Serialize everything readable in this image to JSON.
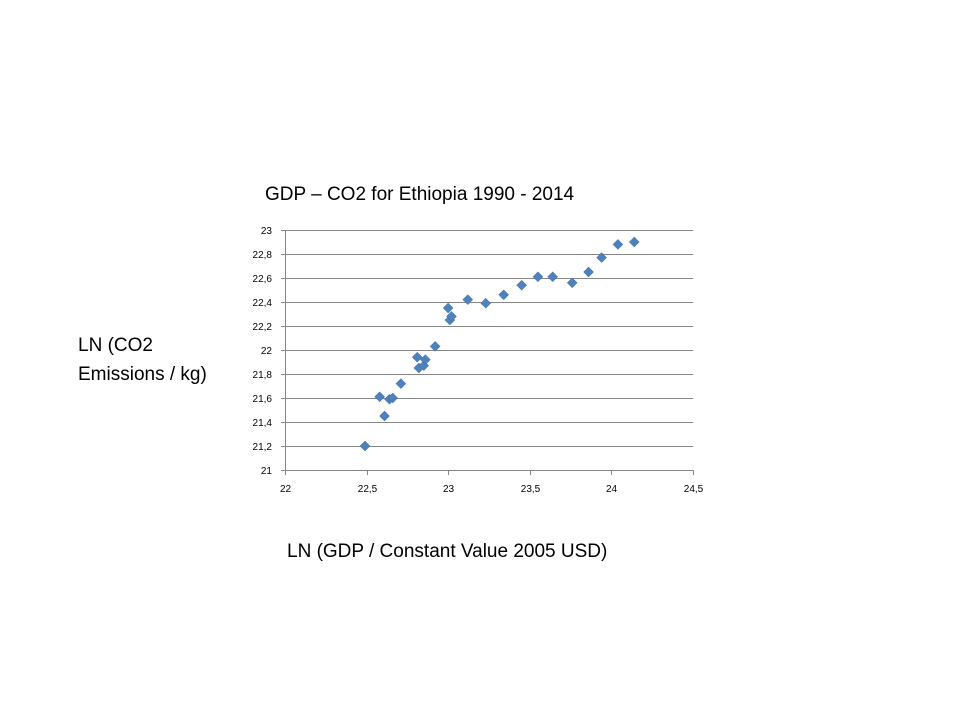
{
  "chart_data": {
    "type": "scatter",
    "title": "GDP – CO2 for Ethiopia 1990 - 2014",
    "xlabel": "LN (GDP / Constant Value 2005 USD)",
    "ylabel_lines": [
      "LN (CO2",
      "Emissions / kg)"
    ],
    "xlim": [
      22,
      24.5
    ],
    "ylim": [
      21,
      23
    ],
    "x_ticks": [
      22,
      22.5,
      23,
      23.5,
      24,
      24.5
    ],
    "x_tick_labels": [
      "22",
      "22,5",
      "23",
      "23,5",
      "24",
      "24,5"
    ],
    "y_ticks": [
      21,
      21.2,
      21.4,
      21.6,
      21.8,
      22,
      22.2,
      22.4,
      22.6,
      22.8,
      23
    ],
    "y_tick_labels": [
      "21",
      "21,2",
      "21,4",
      "21,6",
      "21,8",
      "22",
      "22,2",
      "22,4",
      "22,6",
      "22,8",
      "23"
    ],
    "grid": "horizontal",
    "legend": "none",
    "marker": "diamond",
    "color": "#4f81bd",
    "points": [
      {
        "x": 22.49,
        "y": 21.2
      },
      {
        "x": 22.58,
        "y": 21.61
      },
      {
        "x": 22.61,
        "y": 21.45
      },
      {
        "x": 22.64,
        "y": 21.59
      },
      {
        "x": 22.66,
        "y": 21.6
      },
      {
        "x": 22.71,
        "y": 21.72
      },
      {
        "x": 22.81,
        "y": 21.94
      },
      {
        "x": 22.82,
        "y": 21.85
      },
      {
        "x": 22.85,
        "y": 21.87
      },
      {
        "x": 22.86,
        "y": 21.92
      },
      {
        "x": 22.92,
        "y": 22.03
      },
      {
        "x": 23.0,
        "y": 22.35
      },
      {
        "x": 23.01,
        "y": 22.25
      },
      {
        "x": 23.02,
        "y": 22.28
      },
      {
        "x": 23.12,
        "y": 22.42
      },
      {
        "x": 23.23,
        "y": 22.39
      },
      {
        "x": 23.34,
        "y": 22.46
      },
      {
        "x": 23.45,
        "y": 22.54
      },
      {
        "x": 23.55,
        "y": 22.61
      },
      {
        "x": 23.64,
        "y": 22.61
      },
      {
        "x": 23.76,
        "y": 22.56
      },
      {
        "x": 23.86,
        "y": 22.65
      },
      {
        "x": 23.94,
        "y": 22.77
      },
      {
        "x": 24.04,
        "y": 22.88
      },
      {
        "x": 24.14,
        "y": 22.9
      }
    ]
  }
}
